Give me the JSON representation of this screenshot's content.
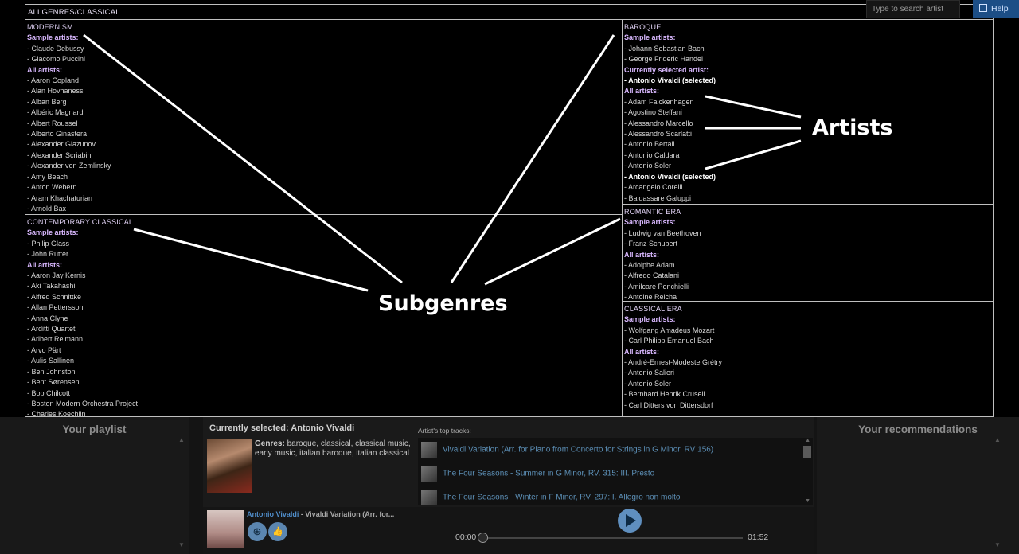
{
  "breadcrumb": "ALLGENRES/CLASSICAL",
  "search": {
    "placeholder": "Type to search artist"
  },
  "help": {
    "label": "Help"
  },
  "tiles": {
    "modernism": {
      "name": "MODERNISM",
      "sample_label": "Sample artists:",
      "samples": [
        "- Claude Debussy",
        "- Giacomo Puccini"
      ],
      "all_label": "All artists:",
      "all": [
        "- Aaron Copland",
        "- Alan Hovhaness",
        "- Alban Berg",
        "- Albéric Magnard",
        "- Albert Roussel",
        "- Alberto Ginastera",
        "- Alexander Glazunov",
        "- Alexander Scriabin",
        "- Alexander von Zemlinsky",
        "- Amy Beach",
        "- Anton Webern",
        "- Aram Khachaturian",
        "- Arnold Bax"
      ]
    },
    "contemporary": {
      "name": "CONTEMPORARY CLASSICAL",
      "sample_label": "Sample artists:",
      "samples": [
        "- Philip Glass",
        "- John Rutter"
      ],
      "all_label": "All artists:",
      "all": [
        "- Aaron Jay Kernis",
        "- Aki Takahashi",
        "- Alfred Schnittke",
        "- Allan Pettersson",
        "- Anna Clyne",
        "- Arditti Quartet",
        "- Aribert Reimann",
        "- Arvo Pärt",
        "- Aulis Sallinen",
        "- Ben Johnston",
        "- Bent Sørensen",
        "- Bob Chilcott",
        "- Boston Modern Orchestra Project",
        "- Charles Koechlin"
      ]
    },
    "baroque": {
      "name": "BAROQUE",
      "sample_label": "Sample artists:",
      "samples": [
        "- Johann Sebastian Bach",
        "- George Frideric Handel"
      ],
      "current_label": "Currently selected artist:",
      "current": "- Antonio Vivaldi (selected)",
      "all_label": "All artists:",
      "all": [
        "- Adam Falckenhagen",
        "- Agostino Steffani",
        "- Alessandro Marcello",
        "- Alessandro Scarlatti",
        "- Antonio Bertali",
        "- Antonio Caldara",
        "- Antonio Soler",
        "- Antonio Vivaldi (selected)",
        "- Arcangelo Corelli",
        "- Baldassare Galuppi"
      ]
    },
    "romantic": {
      "name": "ROMANTIC ERA",
      "sample_label": "Sample artists:",
      "samples": [
        "- Ludwig van Beethoven",
        "- Franz Schubert"
      ],
      "all_label": "All artists:",
      "all": [
        "- Adolphe Adam",
        "- Alfredo Catalani",
        "- Amilcare Ponchielli",
        "- Antoine Reicha"
      ]
    },
    "classical": {
      "name": "CLASSICAL ERA",
      "sample_label": "Sample artists:",
      "samples": [
        "- Wolfgang Amadeus Mozart",
        "- Carl Philipp Emanuel Bach"
      ],
      "all_label": "All artists:",
      "all": [
        "- André-Ernest-Modeste Grétry",
        "- Antonio Salieri",
        "- Antonio Soler",
        "- Bernhard Henrik Crusell",
        "- Carl Ditters von Dittersdorf"
      ]
    }
  },
  "annotations": {
    "subgenres": "Subgenres",
    "artists": "Artists"
  },
  "playlist": {
    "title": "Your playlist"
  },
  "recommendations": {
    "title": "Your recommendations"
  },
  "selected": {
    "title": "Currently selected: Antonio Vivaldi",
    "genres_label": "Genres:",
    "genres": " baroque, classical, classical music, early music, italian baroque, italian classical",
    "top_tracks_label": "Artist's top tracks:",
    "tracks": [
      "Vivaldi Variation (Arr. for Piano from Concerto for Strings in G Minor, RV 156)",
      "The Four Seasons - Summer in G Minor, RV. 315: III. Presto",
      "The Four Seasons - Winter in F Minor, RV. 297: I. Allegro non molto"
    ]
  },
  "player": {
    "artist": "Antonio Vivaldi",
    "track": " - Vivaldi Variation (Arr. for...",
    "add_icon": "⊕",
    "like_icon": "👍",
    "current_time": "00:00",
    "duration": "01:52",
    "progress": 0
  }
}
